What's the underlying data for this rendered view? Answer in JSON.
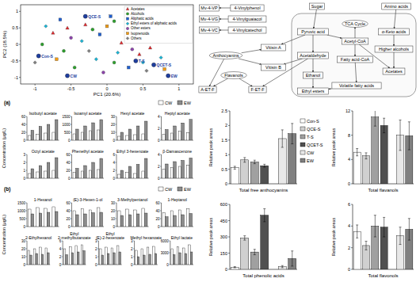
{
  "chart_data": [
    {
      "type": "scatter",
      "xlabel": "PC1 (20.6%)",
      "ylabel": "PC2 (18.5%)",
      "xlim": [
        -1.2,
        1.2
      ],
      "ylim": [
        -1.2,
        1.2
      ],
      "xticks": [
        -1,
        -0.5,
        0,
        0.5,
        1
      ],
      "yticks": [
        -1,
        -0.5,
        0,
        0.5,
        1
      ],
      "legend": "upper right",
      "series": [
        {
          "name": "Acetates",
          "color": "#e3262b",
          "marker": "triangle",
          "x": [
            -0.75,
            -0.55,
            0.2,
            0.45,
            0.6,
            -0.3
          ],
          "values": [
            0.35,
            0.5,
            0.05,
            -0.3,
            -0.1,
            0.6
          ]
        },
        {
          "name": "Alcohols",
          "color": "#2ca02c",
          "marker": "circle",
          "x": [
            -0.9,
            -0.6,
            -0.2,
            0.1,
            0.1,
            -0.45
          ],
          "values": [
            0.0,
            -0.2,
            0.45,
            -0.55,
            0.7,
            -0.7
          ]
        },
        {
          "name": "Aliphatic acids",
          "color": "#1f5fd0",
          "marker": "square",
          "x": [
            0.3,
            -0.1,
            0.05,
            -0.65
          ],
          "values": [
            -0.7,
            0.3,
            0.85,
            0.75
          ]
        },
        {
          "name": "Ethyl esters of aliphatic acids",
          "color": "#17b5d6",
          "marker": "diamond",
          "x": [
            -0.85,
            -0.35,
            0.15,
            0.5,
            0.75,
            -0.15
          ],
          "values": [
            0.55,
            0.1,
            -0.25,
            -0.55,
            -0.4,
            -0.45
          ]
        },
        {
          "name": "Other esters",
          "color": "#8e44ad",
          "marker": "circle",
          "x": [
            -0.5,
            0.35,
            -0.05
          ],
          "values": [
            0.2,
            -0.15,
            -0.85
          ]
        },
        {
          "name": "Isoprenoids",
          "color": "#f39c12",
          "marker": "square",
          "x": [
            -0.7,
            0.0,
            0.8
          ],
          "values": [
            -0.45,
            0.55,
            -0.75
          ]
        },
        {
          "name": "Others",
          "color": "#7f7f7f",
          "marker": "diamond",
          "x": [
            -1.0,
            0.55,
            -0.25
          ],
          "values": [
            -0.55,
            -0.8,
            -0.2
          ]
        }
      ],
      "samples": [
        {
          "label": "Con-S",
          "x": -0.95,
          "y": -0.35
        },
        {
          "label": "QCE-S",
          "x": -0.3,
          "y": 0.85
        },
        {
          "label": "T-S",
          "x": 0.4,
          "y": -0.5
        },
        {
          "label": "QCET-S",
          "x": 0.65,
          "y": -0.62
        },
        {
          "label": "CW",
          "x": -0.55,
          "y": -0.95
        },
        {
          "label": "EW",
          "x": 0.85,
          "y": -0.95
        }
      ]
    },
    {
      "type": "bar",
      "panel_label": "(a)",
      "ylabel": "Concentration (μg/L)",
      "legend": "upper right",
      "tick_labels": "y",
      "series": [
        {
          "name": "CW",
          "color": "#ffffff"
        },
        {
          "name": "EW",
          "color": "#8c8c8c"
        }
      ],
      "panels": [
        {
          "title": "Isobutyl acetate",
          "categories": [
            null,
            null,
            null,
            null
          ],
          "ylim": [
            0,
            60
          ],
          "yticks": [
            0,
            20,
            40,
            60
          ],
          "values": [
            [
              12,
              15,
              18,
              20
            ],
            [
              25,
              35,
              40,
              52
            ]
          ]
        },
        {
          "title": "Isoamyl acetate",
          "categories": [
            null,
            null,
            null,
            null
          ],
          "ylim": [
            0,
            1500
          ],
          "yticks": [
            0,
            500,
            1000,
            1500
          ],
          "values": [
            [
              400,
              500,
              600,
              650
            ],
            [
              700,
              900,
              1100,
              1300
            ]
          ]
        },
        {
          "title": "Hexyl acetate",
          "categories": [
            null,
            null,
            null,
            null
          ],
          "ylim": [
            0,
            30
          ],
          "yticks": [
            0,
            10,
            20,
            30
          ],
          "values": [
            [
              5,
              6,
              7,
              8
            ],
            [
              10,
              14,
              18,
              24
            ]
          ]
        },
        {
          "title": "Heptyl acetate",
          "categories": [
            null,
            null,
            null,
            null
          ],
          "ylim": [
            0,
            4
          ],
          "yticks": [
            0,
            2,
            4
          ],
          "values": [
            [
              1,
              1.2,
              1.5,
              1.3
            ],
            [
              1.8,
              2.4,
              2.9,
              3.5
            ]
          ]
        },
        {
          "title": "Octyl acetate",
          "categories": [
            null,
            null,
            null,
            null
          ],
          "ylim": [
            0,
            3
          ],
          "yticks": [
            0,
            1,
            2,
            3
          ],
          "values": [
            [
              0.6,
              0.8,
              0.9,
              1
            ],
            [
              1.2,
              1.6,
              2,
              2.6
            ]
          ]
        },
        {
          "title": "Phenethyl acetate",
          "categories": [
            null,
            null,
            null,
            null
          ],
          "ylim": [
            0,
            60
          ],
          "yticks": [
            0,
            20,
            40,
            60
          ],
          "values": [
            [
              15,
              18,
              20,
              22
            ],
            [
              25,
              32,
              40,
              50
            ]
          ]
        },
        {
          "title": "Ethyl 3-hexenoate",
          "categories": [
            null,
            null,
            null,
            null
          ],
          "ylim": [
            0,
            6
          ],
          "yticks": [
            0,
            2,
            4,
            6
          ],
          "values": [
            [
              1,
              1.5,
              1.2,
              1.8
            ],
            [
              2,
              3,
              3.5,
              5
            ]
          ]
        },
        {
          "title": "β-Damascenone",
          "categories": [
            null,
            null,
            null,
            null
          ],
          "ylim": [
            0,
            4
          ],
          "yticks": [
            0,
            2,
            4
          ],
          "values": [
            [
              1.5,
              1.8,
              2,
              2.2
            ],
            [
              2.4,
              2.8,
              3,
              3.4
            ]
          ]
        }
      ]
    },
    {
      "type": "bar",
      "panel_label": "(b)",
      "ylabel": "Concentration (μg/L)",
      "legend": "upper right",
      "tick_labels": "y",
      "series": [
        {
          "name": "CW",
          "color": "#ffffff"
        },
        {
          "name": "EW",
          "color": "#8c8c8c"
        }
      ],
      "panels": [
        {
          "title": "1-Hexanol",
          "categories": [
            null,
            null,
            null,
            null
          ],
          "ylim": [
            0,
            1500
          ],
          "yticks": [
            0,
            500,
            1000,
            1500
          ],
          "values": [
            [
              1100,
              1200,
              1150,
              1250
            ],
            [
              800,
              850,
              900,
              950
            ]
          ]
        },
        {
          "title": "(E)-3-Hexen-1-ol",
          "categories": [
            null,
            null,
            null,
            null
          ],
          "ylim": [
            0,
            60
          ],
          "yticks": [
            0,
            20,
            40,
            60
          ],
          "values": [
            [
              40,
              45,
              42,
              48
            ],
            [
              30,
              32,
              35,
              36
            ]
          ]
        },
        {
          "title": "3-Methylpentanol",
          "categories": [
            null,
            null,
            null,
            null
          ],
          "ylim": [
            0,
            30
          ],
          "yticks": [
            0,
            10,
            20,
            30
          ],
          "values": [
            [
              20,
              22,
              21,
              23
            ],
            [
              14,
              15,
              16,
              17
            ]
          ]
        },
        {
          "title": "1-Heptanol",
          "categories": [
            null,
            null,
            null,
            null
          ],
          "ylim": [
            0,
            60
          ],
          "yticks": [
            0,
            20,
            40,
            60
          ],
          "values": [
            [
              35,
              40,
              42,
              45
            ],
            [
              25,
              28,
              30,
              33
            ]
          ]
        },
        {
          "title": "2-Ethylhexanol",
          "categories": [
            null,
            null,
            null,
            null
          ],
          "ylim": [
            0,
            30
          ],
          "yticks": [
            0,
            10,
            20,
            30
          ],
          "values": [
            [
              18,
              20,
              22,
              21
            ],
            [
              12,
              14,
              13,
              15
            ]
          ]
        },
        {
          "title": "Ethyl 2-methylbutanoate",
          "categories": [
            null,
            null,
            null,
            null
          ],
          "ylim": [
            0,
            6
          ],
          "yticks": [
            0,
            2,
            4,
            6
          ],
          "values": [
            [
              4,
              4.5,
              4.8,
              5
            ],
            [
              2.5,
              3,
              3.2,
              3.5
            ]
          ]
        },
        {
          "title": "Ethyl (E)-2-hexenoate",
          "categories": [
            null,
            null,
            null,
            null
          ],
          "ylim": [
            0,
            3
          ],
          "yticks": [
            0,
            1,
            2,
            3
          ],
          "values": [
            [
              2,
              2.2,
              2.1,
              2.4
            ],
            [
              1.2,
              1.4,
              1.5,
              1.6
            ]
          ]
        },
        {
          "title": "Methyl hexanoate",
          "categories": [
            null,
            null,
            null,
            null
          ],
          "ylim": [
            0,
            3
          ],
          "yticks": [
            0,
            1,
            2,
            3
          ],
          "values": [
            [
              1.8,
              2,
              2.2,
              2.3
            ],
            [
              1,
              1.2,
              1.3,
              1.4
            ]
          ]
        },
        {
          "title": "Ethyl lactate",
          "categories": [
            null,
            null,
            null,
            null
          ],
          "ylim": [
            0,
            6000
          ],
          "yticks": [
            0,
            3000,
            6000
          ],
          "values": [
            [
              4000,
              4500,
              4200,
              5000
            ],
            [
              2500,
              3000,
              2800,
              3200
            ]
          ]
        }
      ]
    },
    {
      "type": "bar",
      "ylabel": "Relative peak areas",
      "legend": "right",
      "tick_labels": "y",
      "categories": [
        "Con-S",
        "QCE-S",
        "T-S",
        "QCET-S",
        "CW",
        "EW"
      ],
      "colors": [
        "#ffffff",
        "#d0d0d0",
        "#a0a0a0",
        "#505050",
        "#e8e8e8",
        "#808080"
      ],
      "panels": [
        {
          "title": "Total free anthocyanins",
          "ylim": [
            0,
            2.5
          ],
          "yticks": [
            0,
            0.5,
            1,
            1.5,
            2,
            2.5
          ],
          "values": [
            0.55,
            0.82,
            0.75,
            0.62,
            1.55,
            1.72
          ],
          "errors": [
            0.05,
            0.08,
            0.06,
            0.05,
            0.3,
            0.35
          ]
        },
        {
          "title": "Total flavanols",
          "ylim": [
            0,
            12
          ],
          "yticks": [
            0,
            4,
            8,
            12
          ],
          "values": [
            5.2,
            4.6,
            11,
            9.6,
            8,
            7.9
          ],
          "errors": [
            0.6,
            0.5,
            1.5,
            1.2,
            2.5,
            2.3
          ]
        },
        {
          "title": "Total phenolic acids",
          "ylim": [
            0,
            600
          ],
          "yticks": [
            0,
            150,
            300,
            450,
            600
          ],
          "values": [
            20,
            290,
            160,
            500,
            25,
            100
          ],
          "errors": [
            5,
            20,
            25,
            60,
            10,
            70
          ]
        },
        {
          "title": "Total flavonols",
          "ylim": [
            0,
            6
          ],
          "yticks": [
            0,
            2,
            4,
            6
          ],
          "values": [
            3.5,
            2.2,
            4,
            3.9,
            3.1,
            3.7
          ],
          "errors": [
            0.6,
            0.4,
            1,
            0.9,
            0.8,
            1
          ]
        }
      ]
    }
  ],
  "diagram": {
    "nodes": [
      {
        "label": "Sugar"
      },
      {
        "label": "Amino acids"
      },
      {
        "label": "Pyruvic acid"
      },
      {
        "label": "TCA Cycle"
      },
      {
        "label": "Acetyl-CoA"
      },
      {
        "label": "Acetaldehyde"
      },
      {
        "label": "Ethanol"
      },
      {
        "label": "Fatty acid-CoA"
      },
      {
        "label": "α-Keto acids"
      },
      {
        "label": "Higher alcohols"
      },
      {
        "label": "Acetates"
      },
      {
        "label": "Volatile fatty acids"
      },
      {
        "label": "Ethyl esters"
      },
      {
        "label": "4-Vinylphenol"
      },
      {
        "label": "4-Vinylguaiacol"
      },
      {
        "label": "4-Vinylcatechol"
      },
      {
        "label": "Mv-4-VP"
      },
      {
        "label": "Mv-4-VG"
      },
      {
        "label": "Mv-4-VC"
      },
      {
        "label": "Anthocyanins"
      },
      {
        "label": "Flavanols"
      },
      {
        "label": "Vitisin A"
      },
      {
        "label": "Vitisin B"
      },
      {
        "label": "A-ET-F"
      },
      {
        "label": "F-ET-F"
      }
    ],
    "edges": [
      [
        0,
        2
      ],
      [
        2,
        5
      ],
      [
        5,
        6
      ],
      [
        2,
        4
      ],
      [
        4,
        3
      ],
      [
        4,
        7
      ],
      [
        7,
        11
      ],
      [
        6,
        12
      ],
      [
        11,
        12
      ],
      [
        1,
        8
      ],
      [
        8,
        9
      ],
      [
        9,
        10
      ],
      [
        4,
        10
      ],
      [
        13,
        16
      ],
      [
        14,
        17
      ],
      [
        15,
        18
      ],
      [
        19,
        21
      ],
      [
        2,
        21
      ],
      [
        19,
        22
      ],
      [
        5,
        22
      ],
      [
        19,
        23
      ],
      [
        20,
        23
      ],
      [
        20,
        24
      ],
      [
        5,
        24
      ]
    ]
  }
}
